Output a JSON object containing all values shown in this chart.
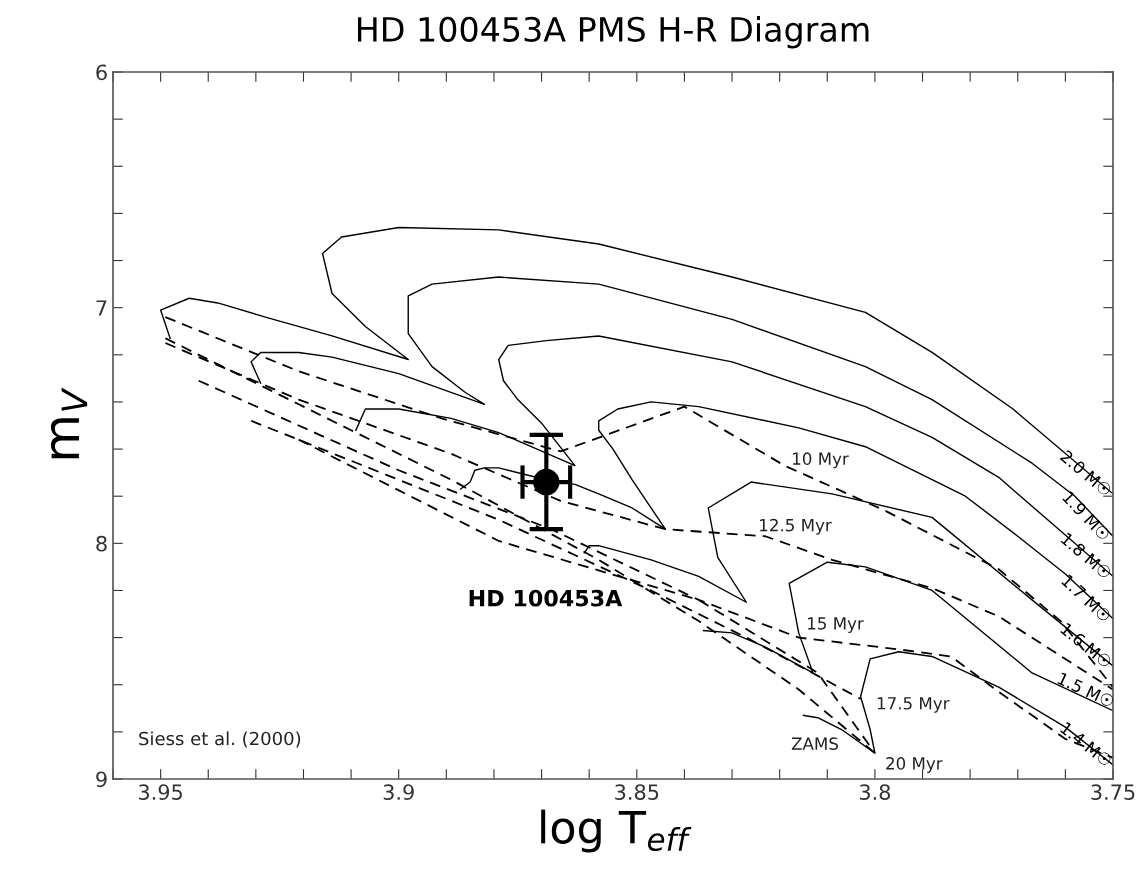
{
  "chart_data": {
    "type": "line",
    "title": "HD 100453A PMS H-R Diagram",
    "xlabel": "log T$_{eff}$",
    "ylabel": "m$_{V}$",
    "xlim": [
      3.96,
      3.75
    ],
    "ylim": [
      9,
      6
    ],
    "xticks": [
      {
        "value": 3.96,
        "label": null
      },
      3.95,
      {
        "value": 3.94,
        "label": null
      },
      {
        "value": 3.93,
        "label": null
      },
      {
        "value": 3.92,
        "label": null
      },
      {
        "value": 3.91,
        "label": null
      },
      3.9,
      {
        "value": 3.89,
        "label": null
      },
      {
        "value": 3.88,
        "label": null
      },
      {
        "value": 3.87,
        "label": null
      },
      {
        "value": 3.86,
        "label": null
      },
      3.85,
      {
        "value": 3.84,
        "label": null
      },
      {
        "value": 3.83,
        "label": null
      },
      {
        "value": 3.82,
        "label": null
      },
      {
        "value": 3.81,
        "label": null
      },
      3.8,
      {
        "value": 3.79,
        "label": null
      },
      {
        "value": 3.78,
        "label": null
      },
      {
        "value": 3.77,
        "label": null
      },
      {
        "value": 3.76,
        "label": null
      },
      3.75
    ],
    "yticks": [
      6,
      {
        "value": 6.2,
        "label": null
      },
      {
        "value": 6.4,
        "label": null
      },
      {
        "value": 6.6,
        "label": null
      },
      {
        "value": 6.8,
        "label": null
      },
      7,
      {
        "value": 7.2,
        "label": null
      },
      {
        "value": 7.4,
        "label": null
      },
      {
        "value": 7.6,
        "label": null
      },
      {
        "value": 7.8,
        "label": null
      },
      8,
      {
        "value": 8.2,
        "label": null
      },
      {
        "value": 8.4,
        "label": null
      },
      {
        "value": 8.6,
        "label": null
      },
      {
        "value": 8.8,
        "label": null
      },
      9
    ],
    "grid": false,
    "series": [
      {
        "name": "2.0 M☉",
        "color": "#000000",
        "line_style": "solid",
        "x": [
          3.75,
          3.771,
          3.788,
          3.802,
          3.83,
          3.858,
          3.879,
          3.9,
          3.912,
          3.916,
          3.914,
          3.907,
          3.898,
          3.914,
          3.928,
          3.938,
          3.944,
          3.95,
          3.949,
          3.948
        ],
        "values": [
          7.79,
          7.43,
          7.19,
          7.02,
          6.87,
          6.73,
          6.67,
          6.66,
          6.7,
          6.77,
          6.94,
          7.08,
          7.22,
          7.12,
          7.04,
          6.98,
          6.96,
          7.01,
          7.07,
          7.13
        ]
      },
      {
        "name": "1.9 M☉",
        "color": "#000000",
        "line_style": "solid",
        "x": [
          3.75,
          3.758,
          3.767,
          3.788,
          3.802,
          3.83,
          3.858,
          3.879,
          3.893,
          3.898,
          3.898,
          3.893,
          3.886,
          3.882,
          3.9,
          3.914,
          3.921,
          3.929,
          3.931,
          3.929
        ],
        "values": [
          7.97,
          7.8,
          7.66,
          7.39,
          7.25,
          7.05,
          6.9,
          6.87,
          6.9,
          6.95,
          7.11,
          7.25,
          7.36,
          7.41,
          7.28,
          7.21,
          7.19,
          7.19,
          7.23,
          7.32
        ]
      },
      {
        "name": "1.8 M☉",
        "color": "#000000",
        "line_style": "solid",
        "x": [
          3.75,
          3.774,
          3.788,
          3.802,
          3.83,
          3.858,
          3.869,
          3.877,
          3.879,
          3.878,
          3.875,
          3.87,
          3.863,
          3.879,
          3.889,
          3.9,
          3.907,
          3.909
        ],
        "values": [
          8.14,
          7.72,
          7.55,
          7.42,
          7.23,
          7.12,
          7.14,
          7.16,
          7.22,
          7.31,
          7.39,
          7.49,
          7.67,
          7.53,
          7.47,
          7.43,
          7.43,
          7.52
        ]
      },
      {
        "name": "1.7 M☉",
        "color": "#000000",
        "line_style": "solid",
        "x": [
          3.75,
          3.76,
          3.77,
          3.781,
          3.788,
          3.802,
          3.816,
          3.837,
          3.847,
          3.854,
          3.858,
          3.858,
          3.855,
          3.851,
          3.844,
          3.851,
          3.858,
          3.863,
          3.869,
          3.879,
          3.882,
          3.884,
          3.885,
          3.887
        ],
        "values": [
          8.32,
          8.13,
          7.97,
          7.8,
          7.73,
          7.59,
          7.51,
          7.42,
          7.4,
          7.43,
          7.48,
          7.52,
          7.6,
          7.73,
          7.94,
          7.85,
          7.79,
          7.75,
          7.73,
          7.68,
          7.68,
          7.69,
          7.74,
          7.77
        ]
      },
      {
        "name": "1.6 M☉",
        "color": "#000000",
        "line_style": "solid",
        "x": [
          3.75,
          3.767,
          3.788,
          3.809,
          3.826,
          3.835,
          3.833,
          3.827,
          3.837,
          3.847,
          3.858,
          3.86,
          3.861
        ],
        "values": [
          8.52,
          8.24,
          7.89,
          7.79,
          7.74,
          7.85,
          8.06,
          8.25,
          8.14,
          8.07,
          8.01,
          8.01,
          8.04
        ]
      },
      {
        "name": "1.5 M☉",
        "color": "#000000",
        "line_style": "solid",
        "x": [
          3.75,
          3.767,
          3.788,
          3.802,
          3.81,
          3.818,
          3.816,
          3.813,
          3.823,
          3.83,
          3.836
        ],
        "values": [
          8.71,
          8.55,
          8.2,
          8.1,
          8.08,
          8.17,
          8.38,
          8.55,
          8.44,
          8.38,
          8.37
        ]
      },
      {
        "name": "1.4 M☉",
        "color": "#000000",
        "line_style": "solid",
        "x": [
          3.75,
          3.76,
          3.774,
          3.788,
          3.795,
          3.801,
          3.803,
          3.801,
          3.8,
          3.807,
          3.812,
          3.815
        ],
        "values": [
          8.94,
          8.78,
          8.61,
          8.48,
          8.46,
          8.49,
          8.65,
          8.79,
          8.89,
          8.79,
          8.74,
          8.73
        ]
      },
      {
        "color": "#000000",
        "line_style": "dashed",
        "x": [
          3.949,
          3.921,
          3.891,
          3.866,
          3.84,
          3.819,
          3.798,
          3.774,
          3.761,
          3.75
        ],
        "values": [
          7.04,
          7.27,
          7.47,
          7.61,
          7.42,
          7.67,
          7.86,
          8.11,
          8.33,
          8.61
        ]
      },
      {
        "color": "#000000",
        "line_style": "dashed",
        "x": [
          3.949,
          3.921,
          3.889,
          3.866,
          3.844,
          3.823,
          3.809,
          3.788,
          3.774,
          3.75
        ],
        "values": [
          7.15,
          7.39,
          7.62,
          7.82,
          7.94,
          7.97,
          8.07,
          8.19,
          8.31,
          8.62
        ]
      },
      {
        "color": "#000000",
        "line_style": "dashed",
        "x": [
          3.942,
          3.9,
          3.868,
          3.837,
          3.816,
          3.795,
          3.784,
          3.774,
          3.76,
          3.75
        ],
        "values": [
          7.31,
          7.69,
          7.94,
          8.24,
          8.4,
          8.45,
          8.48,
          8.63,
          8.83,
          8.91
        ]
      },
      {
        "color": "#000000",
        "line_style": "dashed",
        "x": [
          3.931,
          3.879,
          3.847,
          3.826,
          3.803
        ],
        "values": [
          7.48,
          7.9,
          8.2,
          8.41,
          8.66
        ]
      },
      {
        "color": "#000000",
        "line_style": "dashed",
        "x": [
          3.921,
          3.879,
          3.837,
          3.812,
          3.8
        ],
        "values": [
          7.56,
          7.99,
          8.24,
          8.55,
          8.89
        ]
      },
      {
        "color": "#000000",
        "line_style": "dashed",
        "x": [
          3.949,
          3.921,
          3.889,
          3.858,
          3.837,
          3.816,
          3.8
        ],
        "values": [
          7.13,
          7.41,
          7.73,
          8.07,
          8.33,
          8.62,
          8.89
        ]
      },
      {
        "type": "scatter",
        "color": "#000000",
        "marker": "circle",
        "x": [
          3.869
        ],
        "values": [
          7.74
        ],
        "errors": [
          0.2
        ],
        "xerrors": [
          0.005
        ]
      }
    ],
    "annotations": [
      "10 Myr",
      "12.5 Myr",
      "15 Myr",
      "17.5 Myr",
      "20 Myr",
      "ZAMS",
      "Siess et al. (2000)",
      "HD 100453A"
    ]
  }
}
